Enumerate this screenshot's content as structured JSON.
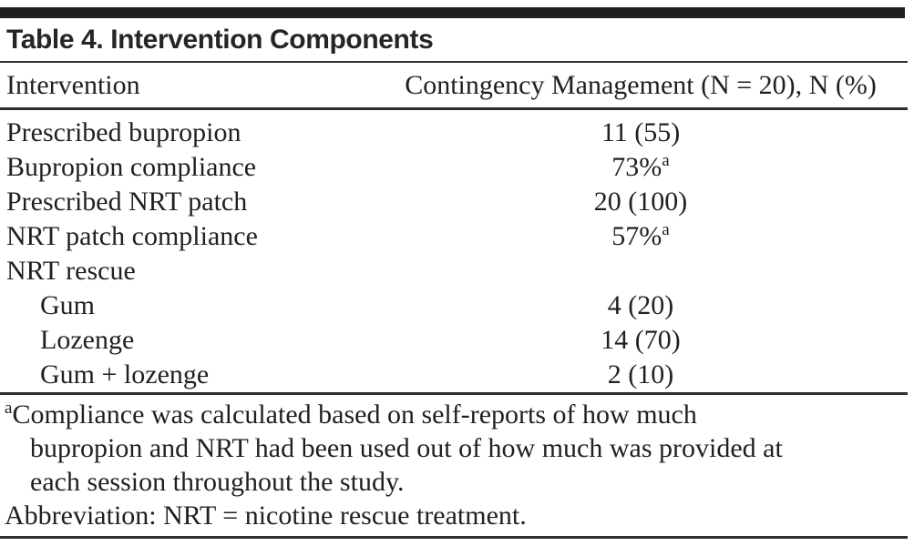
{
  "title": "Table 4. Intervention Components",
  "table": {
    "columns": {
      "intervention": "Intervention",
      "contingency": "Contingency Management (N = 20), N (%)"
    },
    "rows": [
      {
        "label": "Prescribed bupropion",
        "value": "11 (55)",
        "sup": ""
      },
      {
        "label": "Bupropion compliance",
        "value": "73%",
        "sup": "a"
      },
      {
        "label": "Prescribed NRT patch",
        "value": "20 (100)",
        "sup": ""
      },
      {
        "label": "NRT patch compliance",
        "value": "57%",
        "sup": "a"
      },
      {
        "label": "NRT rescue",
        "value": "",
        "sup": ""
      },
      {
        "label": "Gum",
        "value": "4 (20)",
        "sup": ""
      },
      {
        "label": "Lozenge",
        "value": "14 (70)",
        "sup": ""
      },
      {
        "label": "Gum + lozenge",
        "value": "2 (10)",
        "sup": ""
      }
    ]
  },
  "footnotes": {
    "marker": "a",
    "lines": [
      "Compliance was calculated based on self-reports of how much",
      "bupropion and NRT had been used out of how much was provided at",
      "each session throughout the study."
    ],
    "abbreviation": "Abbreviation: NRT = nicotine rescue treatment."
  },
  "colors": {
    "text": "#231f20",
    "rule": "#332f30",
    "top_bar": "#231f20",
    "background": "#ffffff"
  }
}
